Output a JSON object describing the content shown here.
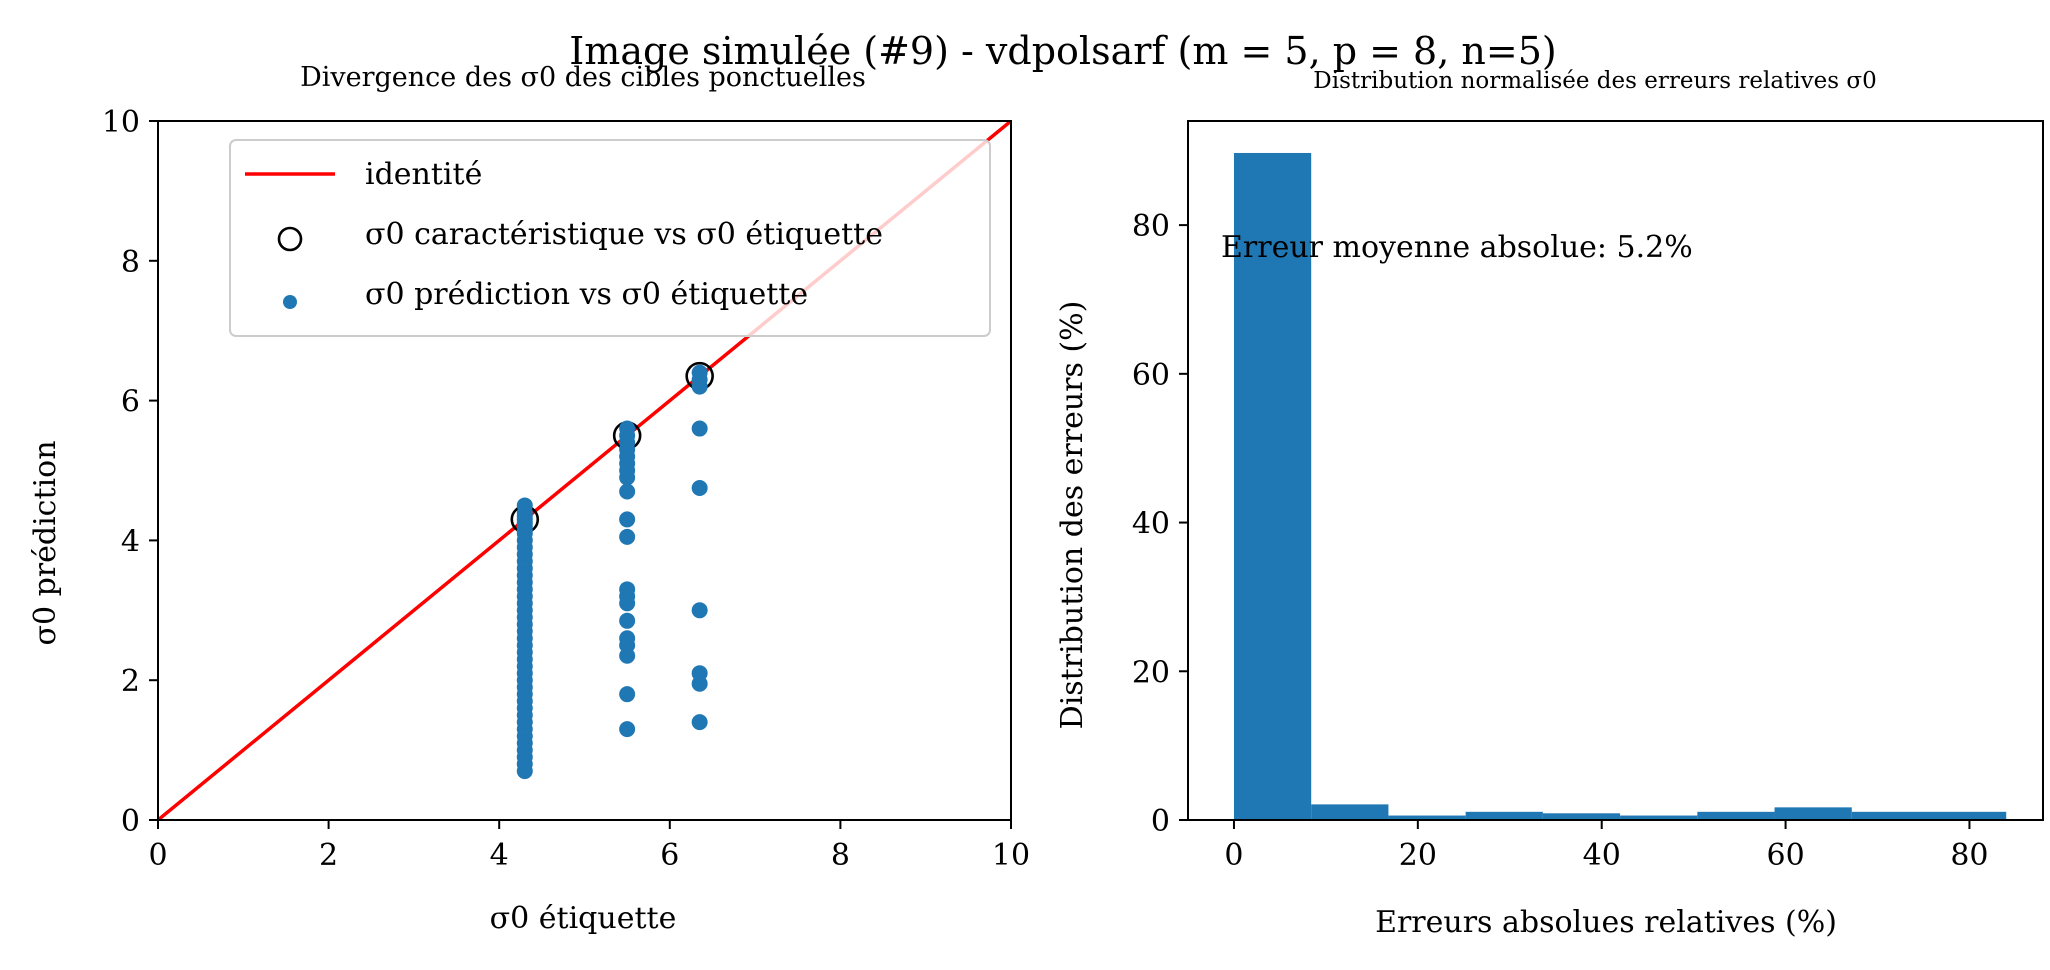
{
  "figure": {
    "suptitle": "Image simulée (#9) - vdpolsarf (m = 5, p = 8, n=5)"
  },
  "chart_data": [
    {
      "type": "scatter",
      "title": "Divergence des σ0 des cibles ponctuelles",
      "xlabel": "σ0 étiquette",
      "ylabel": "σ0 prédiction",
      "xlim": [
        0,
        10
      ],
      "ylim": [
        0,
        10
      ],
      "xticks": [
        0,
        2,
        4,
        6,
        8,
        10
      ],
      "yticks": [
        0,
        2,
        4,
        6,
        8,
        10
      ],
      "legend_position": "upper center",
      "legend": [
        "identité",
        "σ0 caractéristique vs σ0 étiquette",
        "σ0 prédiction vs σ0 étiquette"
      ],
      "identity_line": {
        "x": [
          0,
          10
        ],
        "y": [
          0,
          10
        ],
        "color": "#ff0000"
      },
      "characteristic": {
        "color": "#000000",
        "x": [
          4.3,
          5.5,
          6.35
        ],
        "y": [
          4.3,
          5.5,
          6.35
        ]
      },
      "predictions": {
        "color": "#1f77b4",
        "groups": [
          {
            "x": 4.3,
            "y": [
              4.5,
              4.4,
              4.35,
              4.3,
              4.25,
              4.2,
              4.15,
              4.1,
              4.0,
              3.9,
              3.8,
              3.7,
              3.6,
              3.5,
              3.4,
              3.3,
              3.2,
              3.1,
              3.0,
              2.9,
              2.8,
              2.7,
              2.6,
              2.5,
              2.4,
              2.3,
              2.2,
              2.1,
              2.0,
              1.9,
              1.8,
              1.7,
              1.6,
              1.5,
              1.4,
              1.3,
              1.2,
              1.1,
              1.0,
              0.9,
              0.8,
              0.7
            ]
          },
          {
            "x": 5.5,
            "y": [
              5.6,
              5.5,
              5.4,
              5.3,
              5.2,
              5.1,
              5.0,
              4.9,
              4.7,
              4.3,
              4.05,
              3.3,
              3.2,
              3.1,
              2.85,
              2.6,
              2.5,
              2.35,
              1.8,
              1.3
            ]
          },
          {
            "x": 6.35,
            "y": [
              6.4,
              6.3,
              6.2,
              5.6,
              4.75,
              3.0,
              2.1,
              1.95,
              1.4
            ]
          }
        ]
      }
    },
    {
      "type": "bar",
      "title": "Distribution normalisée des erreurs relatives σ0",
      "xlabel": "Erreurs absolues relatives (%)",
      "ylabel": "Distribution des erreurs (%)",
      "xlim": [
        -5,
        88
      ],
      "ylim": [
        0,
        94
      ],
      "xticks": [
        0,
        20,
        40,
        60,
        80
      ],
      "yticks": [
        0,
        20,
        40,
        60,
        80
      ],
      "color": "#1f77b4",
      "bin_edges": [
        0,
        8.4,
        16.8,
        25.2,
        33.6,
        42.0,
        50.4,
        58.8,
        67.2,
        75.6,
        84.0
      ],
      "values": [
        89.7,
        2.1,
        0.6,
        1.1,
        0.9,
        0.6,
        1.1,
        1.7,
        1.1,
        1.1
      ],
      "annotation": "Erreur moyenne absolue: 5.2%"
    }
  ]
}
